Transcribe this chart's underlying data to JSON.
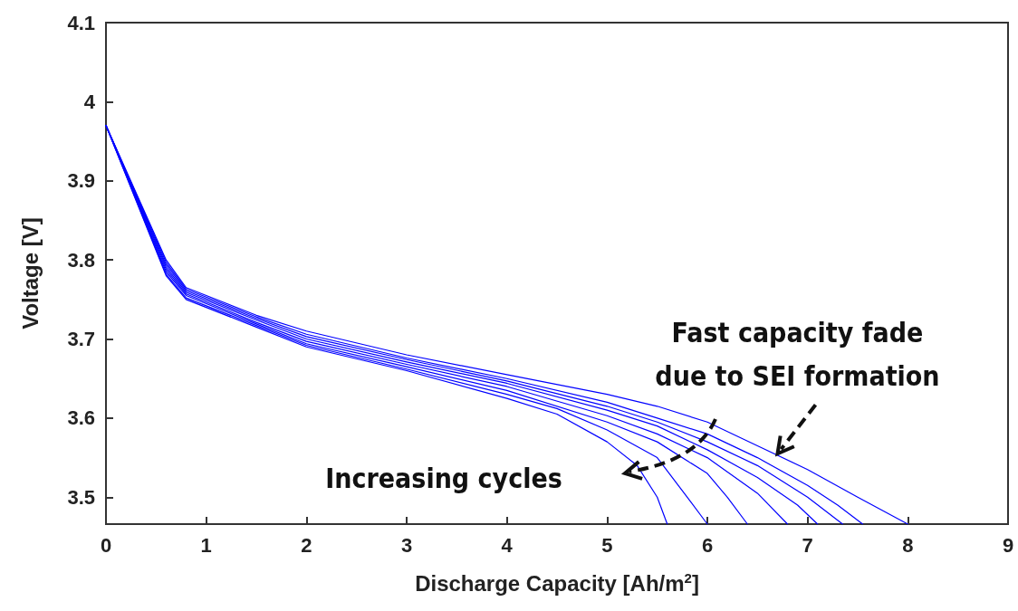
{
  "chart_data": {
    "type": "line",
    "xlabel": "Discharge Capacity [Ah/m$^{2}$]",
    "ylabel": "Voltage [V]",
    "xlim": [
      0,
      9
    ],
    "xticks": [
      0,
      1,
      2,
      3,
      4,
      5,
      6,
      7,
      8,
      9
    ],
    "ylim": [
      3.466,
      4.1
    ],
    "yticks": [
      3.5,
      3.6,
      3.7,
      3.8,
      3.9,
      4,
      4.1
    ],
    "grid": false,
    "marker": "none",
    "line_style": "solid",
    "annotations": [
      {
        "text": "Fast capacity fade\ndue to SEI formation",
        "x": 6.7,
        "y": 3.555
      },
      "Increasing cycles"
    ],
    "series": [
      {
        "color": "#0000ff",
        "x": [
          0,
          0.6,
          0.8,
          1.5,
          2,
          3,
          4,
          5,
          5.5,
          6,
          6.5,
          7,
          7.5,
          8
        ],
        "values": [
          3.97,
          3.8,
          3.765,
          3.73,
          3.71,
          3.68,
          3.655,
          3.63,
          3.615,
          3.595,
          3.565,
          3.535,
          3.5,
          3.466
        ]
      },
      {
        "color": "#0000ff",
        "x": [
          0,
          0.6,
          0.8,
          1.5,
          2,
          3,
          4,
          5,
          5.5,
          6,
          6.5,
          7,
          7.3,
          7.55
        ],
        "values": [
          3.97,
          3.797,
          3.763,
          3.728,
          3.706,
          3.676,
          3.65,
          3.62,
          3.6,
          3.58,
          3.55,
          3.515,
          3.49,
          3.466
        ]
      },
      {
        "color": "#0000ff",
        "x": [
          0,
          0.6,
          0.8,
          1.5,
          2,
          3,
          4,
          5,
          5.5,
          6,
          6.5,
          7,
          7.35
        ],
        "values": [
          3.97,
          3.794,
          3.761,
          3.726,
          3.703,
          3.674,
          3.647,
          3.615,
          3.595,
          3.57,
          3.54,
          3.5,
          3.466
        ]
      },
      {
        "color": "#0000ff",
        "x": [
          0,
          0.6,
          0.8,
          1.5,
          2,
          3,
          4,
          5,
          5.5,
          6,
          6.5,
          6.9,
          7.1
        ],
        "values": [
          3.97,
          3.791,
          3.759,
          3.724,
          3.7,
          3.671,
          3.644,
          3.61,
          3.59,
          3.56,
          3.525,
          3.49,
          3.466
        ]
      },
      {
        "color": "#0000ff",
        "x": [
          0,
          0.6,
          0.8,
          1.5,
          2,
          3,
          4,
          5,
          5.5,
          6,
          6.5,
          6.8
        ],
        "values": [
          3.97,
          3.788,
          3.757,
          3.721,
          3.697,
          3.668,
          3.64,
          3.603,
          3.58,
          3.55,
          3.505,
          3.466
        ]
      },
      {
        "color": "#0000ff",
        "x": [
          0,
          0.6,
          0.8,
          1.5,
          2,
          3,
          4,
          5,
          5.5,
          6,
          6.2,
          6.4
        ],
        "values": [
          3.97,
          3.785,
          3.755,
          3.719,
          3.694,
          3.665,
          3.635,
          3.595,
          3.57,
          3.53,
          3.5,
          3.466
        ]
      },
      {
        "color": "#0000ff",
        "x": [
          0,
          0.6,
          0.8,
          1.5,
          2,
          3,
          4,
          4.5,
          5,
          5.5,
          5.8,
          6
        ],
        "values": [
          3.97,
          3.782,
          3.752,
          3.717,
          3.692,
          3.662,
          3.63,
          3.612,
          3.585,
          3.55,
          3.5,
          3.466
        ]
      },
      {
        "color": "#0000ff",
        "x": [
          0,
          0.6,
          0.8,
          1.5,
          2,
          3,
          4,
          4.5,
          5,
          5.3,
          5.5,
          5.6
        ],
        "values": [
          3.97,
          3.78,
          3.75,
          3.715,
          3.69,
          3.66,
          3.625,
          3.605,
          3.57,
          3.54,
          3.5,
          3.466
        ]
      }
    ]
  }
}
